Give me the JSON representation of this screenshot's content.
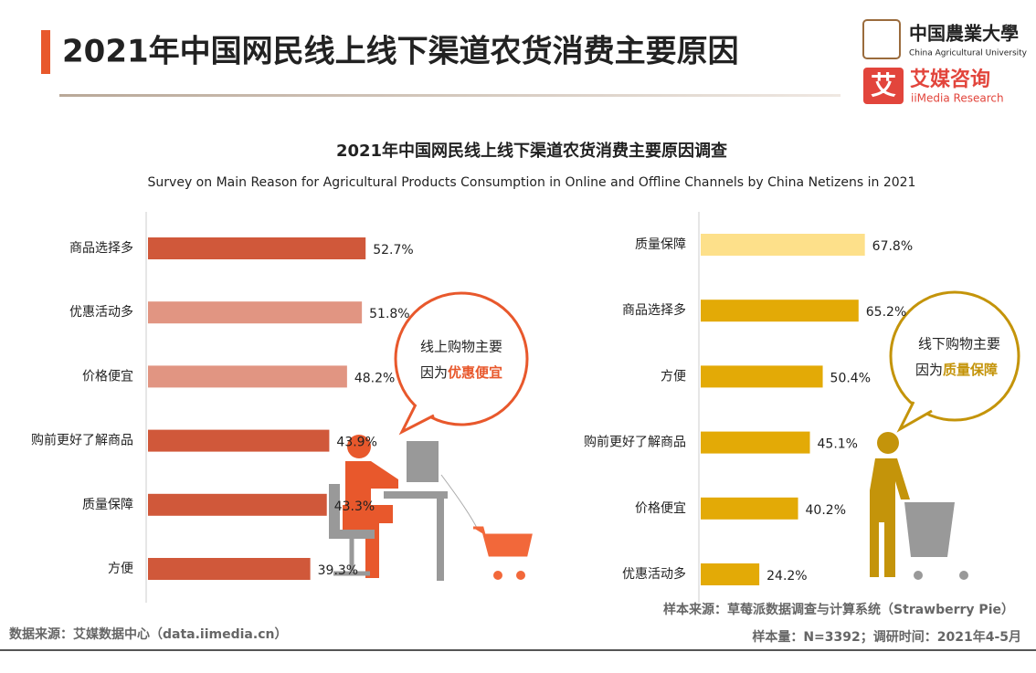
{
  "header": {
    "title": "2021年中国网民线上线下渠道农货消费主要原因",
    "logo_cau": "中国農業大學",
    "logo_cau_en": "China Agricultural University",
    "logo_icon": "艾",
    "logo_iimedia": "艾媒咨询",
    "logo_iimedia_en": "iiMedia Research"
  },
  "figure": {
    "title": "2021年中国网民线上线下渠道农货消费主要原因调查",
    "subtitle": "Survey on Main Reason for Agricultural Products Consumption in Online and Offline Channels by China Netizens in 2021"
  },
  "chart_data": [
    {
      "type": "bar",
      "orientation": "horizontal",
      "categories": [
        "商品选择多",
        "优惠活动多",
        "价格便宜",
        "购前更好了解商品",
        "质量保障",
        "方便"
      ],
      "values": [
        52.7,
        51.8,
        48.2,
        43.9,
        43.3,
        39.3
      ],
      "value_labels": [
        "52.7%",
        "51.8%",
        "48.2%",
        "43.9%",
        "43.3%",
        "39.3%"
      ],
      "colors": [
        "#d0583a",
        "#e19582",
        "#e19582",
        "#d0583a",
        "#d0583a",
        "#d0583a"
      ],
      "xlim": [
        0,
        100
      ]
    },
    {
      "type": "bar",
      "orientation": "horizontal",
      "categories": [
        "质量保障",
        "商品选择多",
        "方便",
        "购前更好了解商品",
        "价格便宜",
        "优惠活动多"
      ],
      "values": [
        67.8,
        65.2,
        50.4,
        45.1,
        40.2,
        24.2
      ],
      "value_labels": [
        "67.8%",
        "65.2%",
        "50.4%",
        "45.1%",
        "40.2%",
        "24.2%"
      ],
      "colors": [
        "#fde08a",
        "#e3aa06",
        "#e3aa06",
        "#e3aa06",
        "#e3aa06",
        "#e3aa06"
      ],
      "xlim": [
        0,
        100
      ]
    }
  ],
  "bubbles": [
    {
      "line1": "线上购物主要",
      "prefix": "因为",
      "highlight": "优惠便宜"
    },
    {
      "line1": "线下购物主要",
      "prefix": "因为",
      "highlight": "质量保障"
    }
  ],
  "footer": {
    "sample_source": "样本来源：草莓派数据调查与计算系统（Strawberry Pie）",
    "data_source": "数据来源：艾媒数据中心（data.iimedia.cn）",
    "sample_info": "样本量：N=3392；调研时间：2021年4-5月"
  }
}
